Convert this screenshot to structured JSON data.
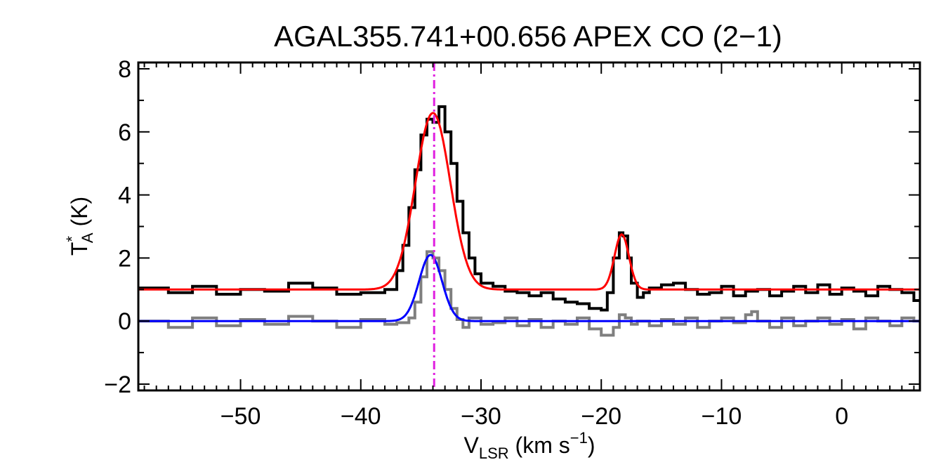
{
  "chart_data": {
    "type": "line",
    "title": "AGAL355.741+00.656  APEX CO (2−1)",
    "xlabel": {
      "main": "V",
      "sub": "LSR",
      "units": " (km s",
      "sup": "−1",
      "close": ")"
    },
    "ylabel": {
      "main": "T",
      "sup": "*",
      "sub": "A",
      "units": " (K)"
    },
    "xlim": [
      -58.5,
      6.5
    ],
    "ylim": [
      -2.2,
      8.2
    ],
    "x_ticks": [
      -50,
      -40,
      -30,
      -20,
      -10,
      0
    ],
    "x_tick_labels": [
      "−50",
      "−40",
      "−30",
      "−20",
      "−10",
      "0"
    ],
    "y_ticks": [
      -2,
      0,
      2,
      4,
      6,
      8
    ],
    "y_tick_labels": [
      "−2",
      "0",
      "2",
      "4",
      "6",
      "8"
    ],
    "grid": false,
    "marker_line": {
      "x": -33.9,
      "color": "#e020e0",
      "style": "dash-dot"
    },
    "series": [
      {
        "role": "observed spectrum (offset)",
        "color": "#000000",
        "style": "step",
        "x": [
          -58.5,
          -56,
          -54,
          -52,
          -50,
          -48,
          -46,
          -44,
          -42,
          -40,
          -38,
          -37,
          -36.5,
          -36,
          -35.5,
          -35,
          -34.5,
          -34,
          -33.5,
          -33,
          -32.5,
          -32,
          -31.5,
          -31,
          -30.5,
          -30,
          -29,
          -28,
          -27,
          -26,
          -25,
          -24,
          -23,
          -22,
          -21,
          -20,
          -19.5,
          -19,
          -18.5,
          -18.2,
          -17.8,
          -17.5,
          -17,
          -16.5,
          -16,
          -15,
          -14,
          -13,
          -12,
          -11,
          -10,
          -9,
          -8,
          -7,
          -6,
          -5,
          -4,
          -3,
          -2,
          -1,
          0,
          1,
          2,
          3,
          4,
          5,
          6
        ],
        "values": [
          1.05,
          0.9,
          1.1,
          0.85,
          1.0,
          0.95,
          1.2,
          1.05,
          0.85,
          0.9,
          1.0,
          1.6,
          2.4,
          3.6,
          4.8,
          5.9,
          6.4,
          6.3,
          6.8,
          6.0,
          5.0,
          3.8,
          2.8,
          2.0,
          1.5,
          1.2,
          1.1,
          0.95,
          0.9,
          0.8,
          0.9,
          0.7,
          0.6,
          0.55,
          0.4,
          0.35,
          0.9,
          2.0,
          2.8,
          2.7,
          2.0,
          1.2,
          0.75,
          0.9,
          1.05,
          1.15,
          1.2,
          1.0,
          0.85,
          0.9,
          1.1,
          0.8,
          0.95,
          1.0,
          0.8,
          0.95,
          1.1,
          0.9,
          1.15,
          0.85,
          1.05,
          0.95,
          0.8,
          1.1,
          1.0,
          0.9,
          0.65
        ]
      },
      {
        "role": "observed spectrum (baseline)",
        "color": "#7f7f7f",
        "style": "step",
        "x": [
          -58.5,
          -56,
          -54,
          -52,
          -50,
          -48,
          -46,
          -44,
          -42,
          -40,
          -38,
          -37,
          -36,
          -35.5,
          -35,
          -34.5,
          -34,
          -33.5,
          -33,
          -32.5,
          -32,
          -31.5,
          -31,
          -30,
          -29,
          -28,
          -27,
          -26,
          -25,
          -24,
          -23,
          -22,
          -21,
          -20,
          -19,
          -18.5,
          -18,
          -17.5,
          -17,
          -16,
          -15,
          -14,
          -13,
          -12,
          -11,
          -10,
          -9,
          -8,
          -7.5,
          -7,
          -6,
          -5,
          -4,
          -3,
          -2,
          -1,
          0,
          1,
          2,
          3,
          4,
          5,
          6
        ],
        "values": [
          0.0,
          -0.2,
          0.1,
          -0.15,
          0.05,
          -0.1,
          0.15,
          0.0,
          -0.2,
          0.05,
          -0.1,
          -0.05,
          0.1,
          0.6,
          1.4,
          2.2,
          2.0,
          1.6,
          1.0,
          0.4,
          0.05,
          -0.2,
          0.1,
          -0.1,
          -0.05,
          0.1,
          -0.15,
          0.05,
          -0.2,
          0.0,
          -0.1,
          0.1,
          -0.25,
          -0.45,
          -0.2,
          0.2,
          0.1,
          -0.1,
          0.0,
          -0.15,
          0.05,
          -0.1,
          0.1,
          -0.2,
          0.0,
          0.1,
          -0.05,
          0.2,
          0.3,
          0.0,
          -0.2,
          0.1,
          -0.15,
          0.0,
          0.1,
          -0.1,
          0.05,
          -0.25,
          0.1,
          0.0,
          -0.15,
          0.1,
          0.0
        ]
      },
      {
        "role": "gaussian fit (offset)",
        "color": "#ff0000",
        "style": "line",
        "baseline": 1.0,
        "components": [
          {
            "center": -34.0,
            "amplitude": 5.6,
            "sigma": 1.45
          },
          {
            "center": -18.3,
            "amplitude": 1.75,
            "sigma": 0.6
          }
        ]
      },
      {
        "role": "gaussian fit (baseline)",
        "color": "#0000ff",
        "style": "line",
        "baseline": 0.0,
        "components": [
          {
            "center": -34.2,
            "amplitude": 2.1,
            "sigma": 0.95
          }
        ]
      }
    ]
  }
}
